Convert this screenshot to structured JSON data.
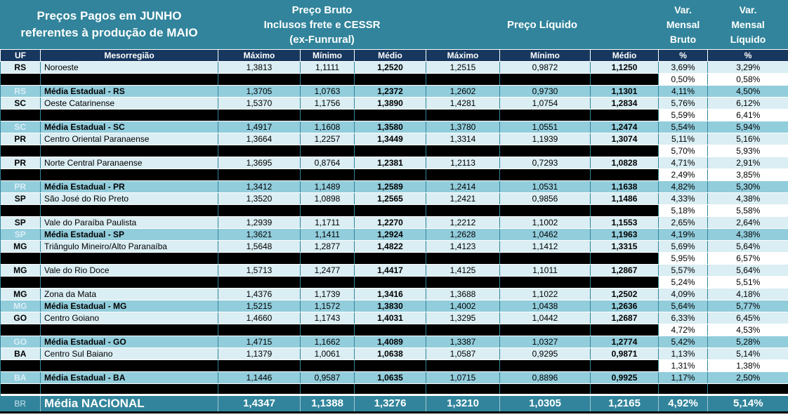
{
  "colors": {
    "header_teal": "#31849B",
    "header_navy": "#17375E",
    "row_light": "#DAEEF3",
    "row_medium": "#92CDDC",
    "redacted_black": "#000000",
    "grid_teal": "#31849B"
  },
  "chart_data": {
    "type": "table",
    "title": "Preços Pagos em JUNHO\nreferentes à produção de MAIO",
    "column_groups": {
      "bruto": "Preço Bruto\nInclusos frete e CESSR\n(ex-Funrural)",
      "liquido": "Preço Líquido",
      "var_bruto": "Var.\nMensal\nBruto",
      "var_liquido": "Var.\nMensal\nLíquido"
    },
    "sub_columns": {
      "uf": "UF",
      "mesorregiao": "Mesorregião",
      "maximo": "Máximo",
      "minimo": "Mínimo",
      "medio": "Médio",
      "pct": "%"
    },
    "rows": [
      {
        "type": "data",
        "uf": "RS",
        "mesorregiao": "Noroeste",
        "bruto": [
          "1,3813",
          "1,1111",
          "1,2520"
        ],
        "liquido": [
          "1,2515",
          "0,9872",
          "1,1250"
        ],
        "var_bruto": "3,69%",
        "var_liquido": "3,29%"
      },
      {
        "type": "redacted",
        "var_bruto": "0,50%",
        "var_liquido": "0,58%"
      },
      {
        "type": "media",
        "uf": "RS",
        "mesorregiao": "Média Estadual - RS",
        "bruto": [
          "1,3705",
          "1,0763",
          "1,2372"
        ],
        "liquido": [
          "1,2602",
          "0,9730",
          "1,1301"
        ],
        "var_bruto": "4,11%",
        "var_liquido": "4,50%"
      },
      {
        "type": "data",
        "uf": "SC",
        "mesorregiao": "Oeste Catarinense",
        "bruto": [
          "1,5370",
          "1,1756",
          "1,3890"
        ],
        "liquido": [
          "1,4281",
          "1,0754",
          "1,2834"
        ],
        "var_bruto": "5,76%",
        "var_liquido": "6,12%"
      },
      {
        "type": "redacted",
        "var_bruto": "5,59%",
        "var_liquido": "6,41%"
      },
      {
        "type": "media",
        "uf": "SC",
        "mesorregiao": "Média Estadual - SC",
        "bruto": [
          "1,4917",
          "1,1608",
          "1,3580"
        ],
        "liquido": [
          "1,3780",
          "1,0551",
          "1,2474"
        ],
        "var_bruto": "5,54%",
        "var_liquido": "5,94%"
      },
      {
        "type": "data",
        "uf": "PR",
        "mesorregiao": "Centro Oriental Paranaense",
        "bruto": [
          "1,3664",
          "1,2257",
          "1,3449"
        ],
        "liquido": [
          "1,3314",
          "1,1939",
          "1,3074"
        ],
        "var_bruto": "5,11%",
        "var_liquido": "5,16%"
      },
      {
        "type": "redacted",
        "var_bruto": "5,70%",
        "var_liquido": "5,93%"
      },
      {
        "type": "data",
        "uf": "PR",
        "mesorregiao": "Norte Central Paranaense",
        "bruto": [
          "1,3695",
          "0,8764",
          "1,2381"
        ],
        "liquido": [
          "1,2113",
          "0,7293",
          "1,0828"
        ],
        "var_bruto": "4,71%",
        "var_liquido": "2,91%"
      },
      {
        "type": "redacted",
        "var_bruto": "2,49%",
        "var_liquido": "3,85%"
      },
      {
        "type": "media",
        "uf": "PR",
        "mesorregiao": "Média Estadual - PR",
        "bruto": [
          "1,3412",
          "1,1489",
          "1,2589"
        ],
        "liquido": [
          "1,2414",
          "1,0531",
          "1,1638"
        ],
        "var_bruto": "4,82%",
        "var_liquido": "5,30%"
      },
      {
        "type": "data",
        "uf": "SP",
        "mesorregiao": "São José do Rio Preto",
        "bruto": [
          "1,3520",
          "1,0898",
          "1,2565"
        ],
        "liquido": [
          "1,2421",
          "0,9856",
          "1,1486"
        ],
        "var_bruto": "4,33%",
        "var_liquido": "4,38%"
      },
      {
        "type": "redacted",
        "var_bruto": "5,18%",
        "var_liquido": "5,58%"
      },
      {
        "type": "data",
        "uf": "SP",
        "mesorregiao": "Vale do Paraíba Paulista",
        "bruto": [
          "1,2939",
          "1,1711",
          "1,2270"
        ],
        "liquido": [
          "1,2212",
          "1,1002",
          "1,1553"
        ],
        "var_bruto": "2,65%",
        "var_liquido": "2,64%"
      },
      {
        "type": "media",
        "uf": "SP",
        "mesorregiao": "Média Estadual - SP",
        "bruto": [
          "1,3621",
          "1,1411",
          "1,2924"
        ],
        "liquido": [
          "1,2628",
          "1,0462",
          "1,1963"
        ],
        "var_bruto": "4,19%",
        "var_liquido": "4,38%"
      },
      {
        "type": "data",
        "uf": "MG",
        "mesorregiao": "Triângulo Mineiro/Alto Paranaíba",
        "bruto": [
          "1,5648",
          "1,2877",
          "1,4822"
        ],
        "liquido": [
          "1,4123",
          "1,1412",
          "1,3315"
        ],
        "var_bruto": "5,69%",
        "var_liquido": "5,64%"
      },
      {
        "type": "redacted",
        "var_bruto": "5,95%",
        "var_liquido": "6,57%"
      },
      {
        "type": "data",
        "uf": "MG",
        "mesorregiao": "Vale do Rio Doce",
        "bruto": [
          "1,5713",
          "1,2477",
          "1,4417"
        ],
        "liquido": [
          "1,4125",
          "1,1011",
          "1,2867"
        ],
        "var_bruto": "5,57%",
        "var_liquido": "5,64%"
      },
      {
        "type": "redacted",
        "var_bruto": "5,24%",
        "var_liquido": "5,51%"
      },
      {
        "type": "data",
        "uf": "MG",
        "mesorregiao": "Zona da Mata",
        "bruto": [
          "1,4376",
          "1,1739",
          "1,3416"
        ],
        "liquido": [
          "1,3688",
          "1,1022",
          "1,2502"
        ],
        "var_bruto": "4,09%",
        "var_liquido": "4,18%"
      },
      {
        "type": "media",
        "uf": "MG",
        "mesorregiao": "Média Estadual - MG",
        "bruto": [
          "1,5215",
          "1,1572",
          "1,3830"
        ],
        "liquido": [
          "1,4002",
          "1,0438",
          "1,2636"
        ],
        "var_bruto": "5,64%",
        "var_liquido": "5,77%"
      },
      {
        "type": "data",
        "uf": "GO",
        "mesorregiao": "Centro Goiano",
        "bruto": [
          "1,4660",
          "1,1743",
          "1,4031"
        ],
        "liquido": [
          "1,3295",
          "1,0442",
          "1,2687"
        ],
        "var_bruto": "6,33%",
        "var_liquido": "6,45%"
      },
      {
        "type": "redacted",
        "var_bruto": "4,72%",
        "var_liquido": "4,53%"
      },
      {
        "type": "media",
        "uf": "GO",
        "mesorregiao": "Média Estadual - GO",
        "bruto": [
          "1,4715",
          "1,1662",
          "1,4089"
        ],
        "liquido": [
          "1,3387",
          "1,0327",
          "1,2774"
        ],
        "var_bruto": "5,42%",
        "var_liquido": "5,28%"
      },
      {
        "type": "data",
        "uf": "BA",
        "mesorregiao": "Centro Sul Baiano",
        "bruto": [
          "1,1379",
          "1,0061",
          "1,0638"
        ],
        "liquido": [
          "1,0587",
          "0,9295",
          "0,9871"
        ],
        "var_bruto": "1,13%",
        "var_liquido": "5,14%"
      },
      {
        "type": "redacted",
        "var_bruto": "1,31%",
        "var_liquido": "1,38%"
      },
      {
        "type": "media",
        "uf": "BA",
        "mesorregiao": "Média Estadual - BA",
        "bruto": [
          "1,1446",
          "0,9587",
          "1,0635"
        ],
        "liquido": [
          "1,0715",
          "0,8896",
          "0,9925"
        ],
        "var_bruto": "1,17%",
        "var_liquido": "2,50%"
      },
      {
        "type": "redacted-full"
      }
    ],
    "footer": {
      "uf": "BR",
      "label": "Média NACIONAL",
      "bruto": [
        "1,4347",
        "1,1388",
        "1,3276"
      ],
      "liquido": [
        "1,3210",
        "1,0305",
        "1,2165"
      ],
      "var_bruto": "4,92%",
      "var_liquido": "5,14%"
    }
  }
}
